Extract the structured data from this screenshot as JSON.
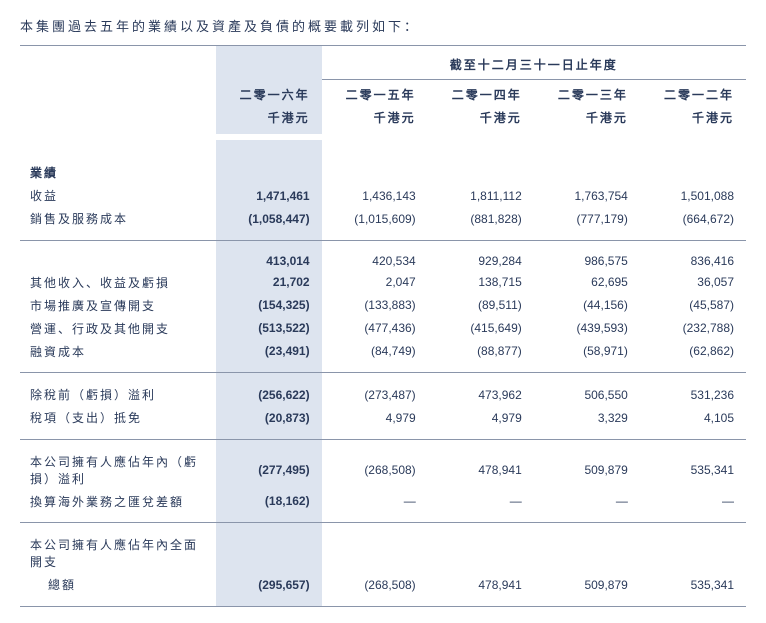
{
  "intro_text": "本集團過去五年的業績以及資產及負債的概要載列如下：",
  "table": {
    "super_header": "截至十二月三十一日止年度",
    "years": [
      "二零一六年",
      "二零一五年",
      "二零一四年",
      "二零一三年",
      "二零一二年"
    ],
    "unit": "千港元",
    "sections": [
      {
        "title": "業績",
        "rows": [
          {
            "label": "收益",
            "values": [
              "1,471,461",
              "1,436,143",
              "1,811,112",
              "1,763,754",
              "1,501,088"
            ]
          },
          {
            "label": "銷售及服務成本",
            "values": [
              "(1,058,447)",
              "(1,015,609)",
              "(881,828)",
              "(777,179)",
              "(664,672)"
            ]
          }
        ]
      },
      {
        "rows": [
          {
            "label": "",
            "values": [
              "413,014",
              "420,534",
              "929,284",
              "986,575",
              "836,416"
            ]
          },
          {
            "label": "其他收入、收益及虧損",
            "values": [
              "21,702",
              "2,047",
              "138,715",
              "62,695",
              "36,057"
            ]
          },
          {
            "label": "市場推廣及宣傳開支",
            "values": [
              "(154,325)",
              "(133,883)",
              "(89,511)",
              "(44,156)",
              "(45,587)"
            ]
          },
          {
            "label": "營運、行政及其他開支",
            "values": [
              "(513,522)",
              "(477,436)",
              "(415,649)",
              "(439,593)",
              "(232,788)"
            ]
          },
          {
            "label": "融資成本",
            "values": [
              "(23,491)",
              "(84,749)",
              "(88,877)",
              "(58,971)",
              "(62,862)"
            ]
          }
        ]
      },
      {
        "rows": [
          {
            "label": "除稅前（虧損）溢利",
            "values": [
              "(256,622)",
              "(273,487)",
              "473,962",
              "506,550",
              "531,236"
            ]
          },
          {
            "label": "稅項（支出）抵免",
            "values": [
              "(20,873)",
              "4,979",
              "4,979",
              "3,329",
              "4,105"
            ]
          }
        ]
      },
      {
        "rows": [
          {
            "label": "本公司擁有人應佔年內（虧損）溢利",
            "values": [
              "(277,495)",
              "(268,508)",
              "478,941",
              "509,879",
              "535,341"
            ]
          },
          {
            "label": "換算海外業務之匯兌差額",
            "values": [
              "(18,162)",
              "—",
              "—",
              "—",
              "—"
            ]
          }
        ]
      },
      {
        "rows": [
          {
            "label": "本公司擁有人應佔年內全面開支",
            "values": [
              "",
              "",
              "",
              "",
              ""
            ]
          },
          {
            "label": "總額",
            "indent": true,
            "values": [
              "(295,657)",
              "(268,508)",
              "478,941",
              "509,879",
              "535,341"
            ]
          }
        ]
      }
    ]
  },
  "colors": {
    "text": "#2a3a5a",
    "highlight_bg": "#dde4ef",
    "border": "#8a95aa",
    "background": "#ffffff"
  },
  "typography": {
    "body_fontsize": 12,
    "intro_fontsize": 13,
    "font_family": "Microsoft YaHei / PingFang SC"
  }
}
